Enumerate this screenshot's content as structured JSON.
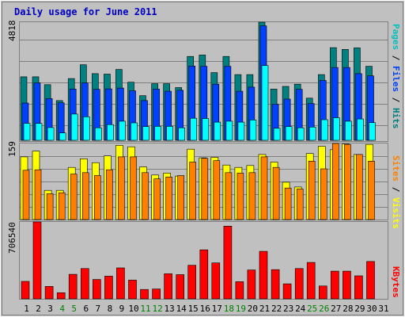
{
  "title": "Daily usage for June 2011",
  "colors": {
    "frame": "#999999",
    "background": "#c0c0c0",
    "title": "#0000c0",
    "gridline": "#808080",
    "hits": "#00ffff",
    "files": "#0040ff",
    "pages": "#008080",
    "visits": "#ffff00",
    "sites": "#ff8000",
    "kbytes": "#ff0000",
    "weekend_day_label": "#008000",
    "day_label": "#000000"
  },
  "chart_data": [
    {
      "type": "bar",
      "name": "pages-files-hits",
      "ylabel_parts": [
        {
          "text": "Pages",
          "color": "#00c0c0"
        },
        {
          "text": " / ",
          "color": "#000000"
        },
        {
          "text": "Files",
          "color": "#0040ff"
        },
        {
          "text": " / ",
          "color": "#000000"
        },
        {
          "text": "Hits",
          "color": "#008080"
        }
      ],
      "max_label": "4818",
      "ylim": [
        0,
        4818
      ],
      "grid": true,
      "categories": [
        "1",
        "2",
        "3",
        "4",
        "5",
        "6",
        "7",
        "8",
        "9",
        "10",
        "11",
        "12",
        "13",
        "14",
        "15",
        "16",
        "17",
        "18",
        "19",
        "20",
        "21",
        "22",
        "23",
        "24",
        "25",
        "26",
        "27",
        "28",
        "29",
        "30",
        "31"
      ],
      "series": [
        {
          "name": "Hits",
          "color": "#008080",
          "values": [
            2590,
            2590,
            2270,
            1620,
            2520,
            3080,
            2720,
            2700,
            2890,
            2370,
            1820,
            2310,
            2310,
            2150,
            3420,
            3480,
            2760,
            3420,
            2680,
            2680,
            4818,
            2090,
            2200,
            2290,
            1720,
            2680,
            3780,
            3710,
            3770,
            3020,
            0
          ]
        },
        {
          "name": "Files",
          "color": "#0040ff",
          "values": [
            1520,
            2340,
            1700,
            1530,
            2090,
            2340,
            2080,
            2100,
            2130,
            2020,
            1620,
            2090,
            2000,
            2040,
            3030,
            3020,
            2290,
            3020,
            2000,
            2170,
            4670,
            1470,
            1680,
            2080,
            1500,
            2440,
            2970,
            2970,
            2720,
            2630,
            0
          ]
        },
        {
          "name": "Pages",
          "color": "#00ffff",
          "values": [
            690,
            690,
            520,
            300,
            1070,
            960,
            510,
            640,
            780,
            710,
            560,
            570,
            570,
            510,
            900,
            890,
            740,
            780,
            740,
            830,
            3050,
            490,
            560,
            510,
            540,
            840,
            920,
            780,
            870,
            720,
            0
          ]
        }
      ]
    },
    {
      "type": "bar",
      "name": "visits-sites",
      "ylabel_parts": [
        {
          "text": "Sites",
          "color": "#ff8000"
        },
        {
          "text": " / ",
          "color": "#000000"
        },
        {
          "text": "Visits",
          "color": "#ffff00"
        }
      ],
      "max_label": "159",
      "ylim": [
        0,
        159
      ],
      "grid": true,
      "categories": [
        "1",
        "2",
        "3",
        "4",
        "5",
        "6",
        "7",
        "8",
        "9",
        "10",
        "11",
        "12",
        "13",
        "14",
        "15",
        "16",
        "17",
        "18",
        "19",
        "20",
        "21",
        "22",
        "23",
        "24",
        "25",
        "26",
        "27",
        "28",
        "29",
        "30",
        "31"
      ],
      "series": [
        {
          "name": "Visits",
          "color": "#ffff00",
          "values": [
            131,
            143,
            61,
            61,
            109,
            127,
            119,
            133,
            155,
            152,
            110,
            93,
            97,
            91,
            147,
            129,
            130,
            114,
            109,
            113,
            136,
            120,
            78,
            68,
            138,
            153,
            146,
            158,
            136,
            157,
            0
          ]
        },
        {
          "name": "Sites",
          "color": "#ff8000",
          "values": [
            103,
            104,
            54,
            56,
            95,
            98,
            92,
            104,
            131,
            131,
            98,
            85,
            89,
            92,
            120,
            128,
            123,
            98,
            97,
            98,
            131,
            109,
            66,
            64,
            122,
            106,
            159,
            157,
            136,
            122,
            0
          ]
        }
      ]
    },
    {
      "type": "bar",
      "name": "kbytes",
      "ylabel_parts": [
        {
          "text": "KBytes",
          "color": "#ff0000"
        }
      ],
      "max_label": "706540",
      "ylim": [
        0,
        706540
      ],
      "grid": false,
      "categories": [
        "1",
        "2",
        "3",
        "4",
        "5",
        "6",
        "7",
        "8",
        "9",
        "10",
        "11",
        "12",
        "13",
        "14",
        "15",
        "16",
        "17",
        "18",
        "19",
        "20",
        "21",
        "22",
        "23",
        "24",
        "25",
        "26",
        "27",
        "28",
        "29",
        "30",
        "31"
      ],
      "series": [
        {
          "name": "KBytes",
          "color": "#ff0000",
          "values": [
            160000,
            706540,
            114000,
            56000,
            225000,
            278000,
            178000,
            208000,
            284000,
            172000,
            86000,
            90000,
            230000,
            222000,
            308000,
            450000,
            330000,
            668000,
            157000,
            265000,
            436000,
            268000,
            138000,
            278000,
            334000,
            118000,
            254000,
            254000,
            211000,
            343000,
            0
          ]
        }
      ]
    }
  ],
  "day_labels": [
    {
      "text": "1",
      "weekend": false
    },
    {
      "text": "2",
      "weekend": false
    },
    {
      "text": "3",
      "weekend": false
    },
    {
      "text": "4",
      "weekend": true
    },
    {
      "text": "5",
      "weekend": true
    },
    {
      "text": "6",
      "weekend": false
    },
    {
      "text": "7",
      "weekend": false
    },
    {
      "text": "8",
      "weekend": false
    },
    {
      "text": "9",
      "weekend": false
    },
    {
      "text": "10",
      "weekend": false
    },
    {
      "text": "11",
      "weekend": true
    },
    {
      "text": "12",
      "weekend": true
    },
    {
      "text": "13",
      "weekend": false
    },
    {
      "text": "14",
      "weekend": false
    },
    {
      "text": "15",
      "weekend": false
    },
    {
      "text": "16",
      "weekend": false
    },
    {
      "text": "17",
      "weekend": false
    },
    {
      "text": "18",
      "weekend": true
    },
    {
      "text": "19",
      "weekend": true
    },
    {
      "text": "20",
      "weekend": false
    },
    {
      "text": "21",
      "weekend": false
    },
    {
      "text": "22",
      "weekend": false
    },
    {
      "text": "23",
      "weekend": false
    },
    {
      "text": "24",
      "weekend": false
    },
    {
      "text": "25",
      "weekend": true
    },
    {
      "text": "26",
      "weekend": true
    },
    {
      "text": "27",
      "weekend": false
    },
    {
      "text": "28",
      "weekend": false
    },
    {
      "text": "29",
      "weekend": false
    },
    {
      "text": "30",
      "weekend": false
    },
    {
      "text": "31",
      "weekend": false
    }
  ]
}
